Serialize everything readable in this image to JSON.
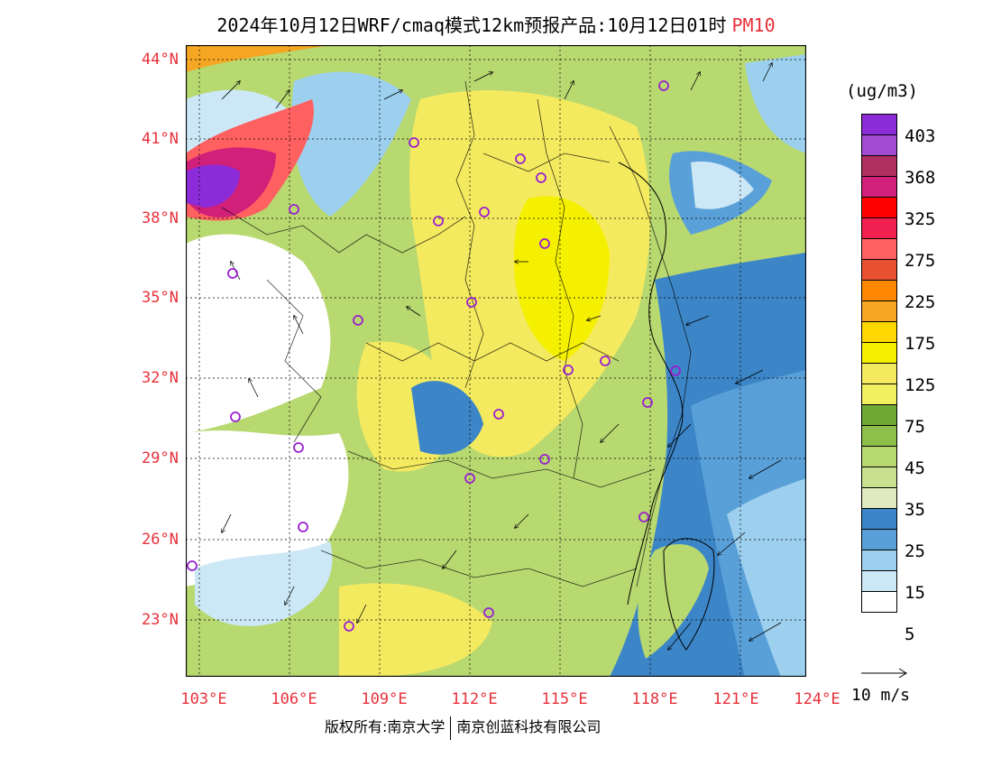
{
  "title": {
    "main": "2024年10月12日WRF/cmaq模式12km预报产品:10月12日01时",
    "pollutant": "PM10"
  },
  "lat_labels": [
    "44°N",
    "41°N",
    "38°N",
    "35°N",
    "32°N",
    "29°N",
    "26°N",
    "23°N"
  ],
  "lon_labels": [
    "103°E",
    "106°E",
    "109°E",
    "112°E",
    "115°E",
    "118°E",
    "121°E",
    "124°E"
  ],
  "legend": {
    "units": "(ug/m3)",
    "labels": [
      "403",
      "368",
      "325",
      "275",
      "225",
      "175",
      "125",
      "75",
      "45",
      "35",
      "25",
      "15",
      "5"
    ],
    "colors": [
      "#8c2cd8",
      "#a24ad0",
      "#b03060",
      "#d0207a",
      "#ff0000",
      "#f02050",
      "#ff6060",
      "#e85030",
      "#ff8800",
      "#f5a623",
      "#ffd700",
      "#f5f000",
      "#f4ea60",
      "#f0f060",
      "#6fa832",
      "#8cc04a",
      "#b8d870",
      "#c8e090",
      "#e0eac0",
      "#3c86c8",
      "#5aa0d8",
      "#9cd0ee",
      "#cce8f6",
      "#ffffff"
    ]
  },
  "wind": {
    "label": "10 m/s"
  },
  "copyright": {
    "left": "版权所有:南京大学",
    "right": "南京创蓝科技有限公司"
  },
  "colors": {
    "label_red": "#e8303a",
    "frame": "#000000"
  }
}
